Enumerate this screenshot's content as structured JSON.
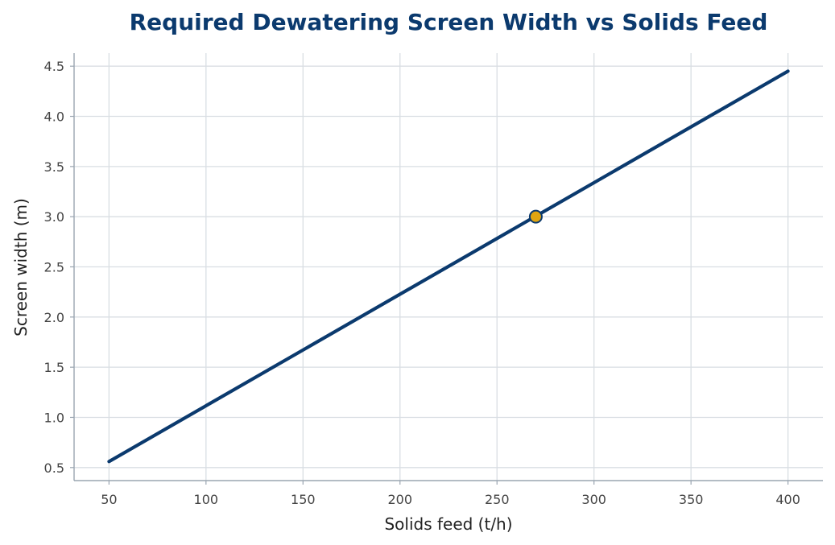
{
  "chart_data": {
    "type": "line",
    "title": "Required Dewatering Screen Width vs Solids Feed",
    "xlabel": "Solids feed  (t/h)",
    "ylabel": "Screen width  (m)",
    "xlim": [
      32,
      418
    ],
    "ylim": [
      0.37,
      4.63
    ],
    "xticks": [
      50,
      100,
      150,
      200,
      250,
      300,
      350,
      400
    ],
    "yticks": [
      0.5,
      1.0,
      1.5,
      2.0,
      2.5,
      3.0,
      3.5,
      4.0,
      4.5
    ],
    "grid": true,
    "series": [
      {
        "x": [
          50,
          400
        ],
        "y": [
          0.56,
          4.45
        ]
      }
    ],
    "highlight_point": {
      "x": 270,
      "y": 3.0
    },
    "colors": {
      "title": "#0b3a6e",
      "line": "#0b3a6e",
      "highlight_fill": "#e0a511",
      "highlight_edge": "#0b3a6e",
      "grid": "#d9dee3",
      "axis": "#9aa5b1"
    }
  }
}
